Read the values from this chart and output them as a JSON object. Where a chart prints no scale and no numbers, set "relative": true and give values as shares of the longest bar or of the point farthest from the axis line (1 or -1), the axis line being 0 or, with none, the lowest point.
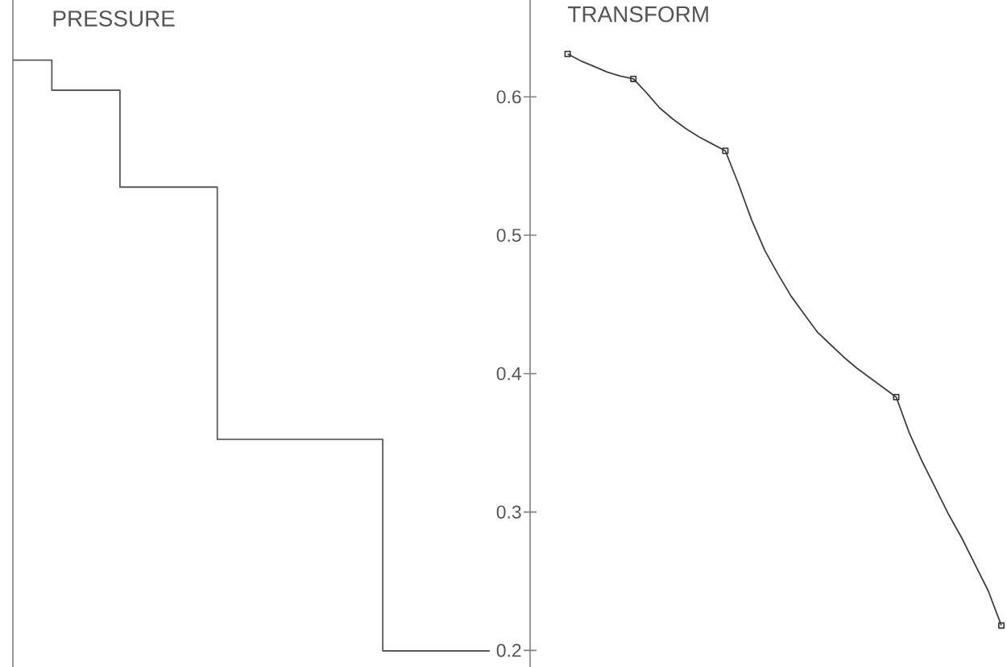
{
  "chart_data": [
    {
      "type": "step",
      "title": "PRESSURE",
      "categories": [
        null,
        null,
        null,
        null,
        null,
        null,
        null,
        null,
        null,
        null,
        null,
        null,
        null,
        null,
        null,
        null,
        null,
        null,
        null,
        null,
        null,
        null,
        null,
        null,
        null,
        null,
        null,
        null,
        null,
        null,
        null,
        null,
        null,
        null,
        null,
        null,
        null,
        null,
        null,
        null,
        null,
        null,
        null,
        null,
        null,
        null,
        null,
        null,
        null,
        null
      ],
      "relative": true,
      "tick_labels": false,
      "series": [
        {
          "color": "#5a5a5a",
          "values": [
            1,
            1,
            1,
            1,
            0.949,
            0.949,
            0.949,
            0.949,
            0.949,
            0.949,
            0.949,
            0.785,
            0.785,
            0.785,
            0.785,
            0.785,
            0.785,
            0.785,
            0.785,
            0.785,
            0.785,
            0.358,
            0.358,
            0.358,
            0.358,
            0.358,
            0.358,
            0.358,
            0.358,
            0.358,
            0.358,
            0.358,
            0.358,
            0.358,
            0.358,
            0.358,
            0.358,
            0.358,
            0,
            0,
            0,
            0,
            0,
            0,
            0,
            0,
            0,
            0,
            0,
            0
          ]
        }
      ]
    },
    {
      "type": "line",
      "title": "TRANSFORM",
      "categories": [
        null,
        null,
        null,
        null,
        null,
        null,
        null,
        null,
        null,
        null,
        null,
        null,
        null,
        null,
        null,
        null,
        null,
        null,
        null,
        null,
        null,
        null,
        null,
        null,
        null,
        null,
        null,
        null,
        null,
        null,
        null,
        null,
        null,
        null
      ],
      "ylim": [
        0.188,
        0.67
      ],
      "yticks": [
        0.2,
        0.3,
        0.4,
        0.5,
        0.6
      ],
      "tick_labels": "y",
      "series": [
        {
          "color": "#404040",
          "values": [
            0.631,
            0.626,
            0.622,
            0.618,
            0.615,
            0.613,
            0.603,
            0.592,
            0.584,
            0.577,
            0.571,
            0.566,
            0.561,
            0.537,
            0.511,
            0.489,
            0.472,
            0.456,
            0.443,
            0.43,
            0.421,
            0.412,
            0.404,
            0.397,
            0.39,
            0.383,
            0.357,
            0.336,
            0.317,
            0.298,
            0.281,
            0.262,
            0.243,
            0.218
          ]
        },
        {
          "type": "scatter",
          "color": "#303030",
          "marker": "square",
          "values": [
            0.631,
            null,
            null,
            null,
            null,
            0.613,
            null,
            null,
            null,
            null,
            null,
            null,
            0.561,
            null,
            null,
            null,
            null,
            null,
            null,
            null,
            null,
            null,
            null,
            null,
            null,
            0.383,
            null,
            null,
            null,
            null,
            null,
            null,
            null,
            0.218
          ]
        }
      ]
    }
  ]
}
